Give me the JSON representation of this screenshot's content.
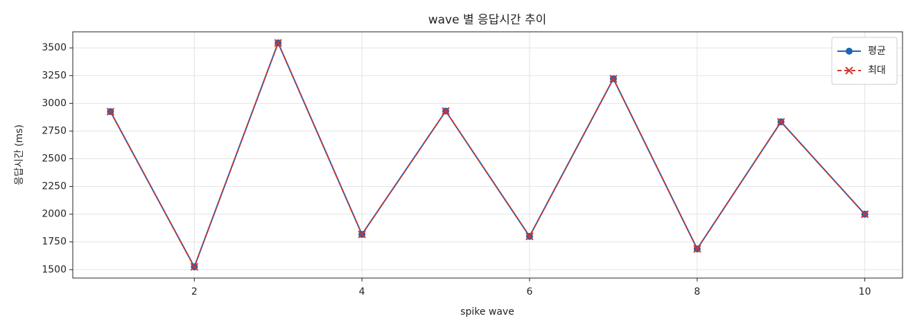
{
  "chart_data": {
    "type": "line",
    "title": "wave 별 응답시간 추이",
    "x_label": "spike wave",
    "y_label": "응답시간 (ms)",
    "x": [
      1,
      2,
      3,
      4,
      5,
      6,
      7,
      8,
      9,
      10
    ],
    "series": [
      {
        "name": "평균",
        "color": "#1f63b5",
        "marker": "circle",
        "dash": false,
        "values": [
          2925,
          1525,
          3545,
          1818,
          2930,
          1800,
          3222,
          1687,
          2833,
          2000
        ]
      },
      {
        "name": "최대",
        "color": "#d0342c",
        "marker": "x",
        "dash": true,
        "values": [
          2925,
          1525,
          3545,
          1818,
          2930,
          1800,
          3222,
          1687,
          2833,
          2000
        ]
      }
    ],
    "xlim": [
      0.55,
      10.45
    ],
    "xticks": [
      2,
      4,
      6,
      8,
      10
    ],
    "ylim": [
      1424,
      3645
    ],
    "yticks": [
      1500,
      1750,
      2000,
      2250,
      2500,
      2750,
      3000,
      3250,
      3500
    ],
    "grid": true,
    "legend": "upper right"
  }
}
